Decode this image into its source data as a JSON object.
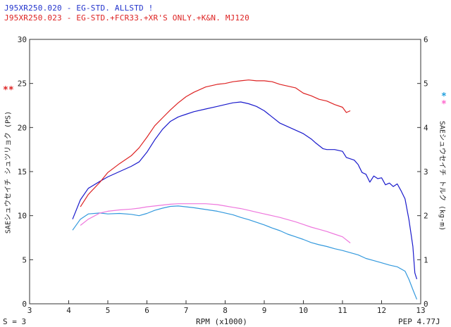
{
  "chart_data": {
    "type": "line",
    "legend": [
      {
        "text": "J95XR250.020 - EG-STD. ALLSTD !",
        "color": "#2233cc"
      },
      {
        "text": "J95XR250.023 - EG-STD.+FCR33.+XR'S ONLY.+K&N. MJ120",
        "color": "#dd2222"
      }
    ],
    "xlabel": "RPM (x1000)",
    "ylabel_left": "SAEシュウセイチ シュツリョク (PS)",
    "ylabel_right": "SAEシュウセイチ トルク (kg-m)",
    "xlim": [
      3,
      13
    ],
    "ylim_left": [
      0,
      30
    ],
    "ylim_right": [
      0,
      6
    ],
    "x_ticks": [
      "3",
      "4",
      "5",
      "6",
      "7",
      "8",
      "9",
      "10",
      "11",
      "12",
      "13"
    ],
    "y_ticks_left": [
      "0",
      "5",
      "10",
      "15",
      "20",
      "25",
      "30"
    ],
    "y_ticks_right": [
      "0",
      "1",
      "2",
      "3",
      "4",
      "5",
      "6"
    ],
    "grid": false,
    "markers": {
      "left": "**",
      "right_1": "*",
      "right_2": "*"
    },
    "series": [
      {
        "key": "power_std",
        "axis": "left",
        "color": "#1a1acc",
        "points": [
          [
            4.1,
            9.6
          ],
          [
            4.3,
            11.8
          ],
          [
            4.5,
            13.1
          ],
          [
            4.8,
            13.9
          ],
          [
            5.0,
            14.4
          ],
          [
            5.3,
            15.0
          ],
          [
            5.6,
            15.6
          ],
          [
            5.8,
            16.1
          ],
          [
            6.0,
            17.2
          ],
          [
            6.2,
            18.6
          ],
          [
            6.4,
            19.8
          ],
          [
            6.6,
            20.7
          ],
          [
            6.8,
            21.2
          ],
          [
            7.0,
            21.5
          ],
          [
            7.2,
            21.8
          ],
          [
            7.5,
            22.1
          ],
          [
            7.8,
            22.4
          ],
          [
            8.0,
            22.6
          ],
          [
            8.2,
            22.8
          ],
          [
            8.4,
            22.9
          ],
          [
            8.6,
            22.7
          ],
          [
            8.8,
            22.4
          ],
          [
            9.0,
            21.9
          ],
          [
            9.2,
            21.2
          ],
          [
            9.4,
            20.5
          ],
          [
            9.6,
            20.1
          ],
          [
            9.8,
            19.7
          ],
          [
            10.0,
            19.3
          ],
          [
            10.2,
            18.7
          ],
          [
            10.3,
            18.3
          ],
          [
            10.5,
            17.6
          ],
          [
            10.6,
            17.5
          ],
          [
            10.8,
            17.5
          ],
          [
            11.0,
            17.3
          ],
          [
            11.1,
            16.6
          ],
          [
            11.3,
            16.3
          ],
          [
            11.4,
            15.8
          ],
          [
            11.5,
            14.9
          ],
          [
            11.6,
            14.7
          ],
          [
            11.7,
            13.8
          ],
          [
            11.8,
            14.5
          ],
          [
            11.9,
            14.2
          ],
          [
            12.0,
            14.3
          ],
          [
            12.1,
            13.5
          ],
          [
            12.2,
            13.7
          ],
          [
            12.3,
            13.3
          ],
          [
            12.4,
            13.6
          ],
          [
            12.5,
            12.8
          ],
          [
            12.6,
            11.9
          ],
          [
            12.7,
            9.5
          ],
          [
            12.8,
            6.5
          ],
          [
            12.85,
            3.5
          ],
          [
            12.9,
            2.8
          ]
        ]
      },
      {
        "key": "power_mod",
        "axis": "left",
        "color": "#dd2222",
        "points": [
          [
            4.3,
            11.0
          ],
          [
            4.5,
            12.4
          ],
          [
            4.8,
            13.8
          ],
          [
            5.0,
            14.9
          ],
          [
            5.3,
            15.9
          ],
          [
            5.6,
            16.8
          ],
          [
            5.8,
            17.7
          ],
          [
            6.0,
            18.9
          ],
          [
            6.2,
            20.2
          ],
          [
            6.4,
            21.1
          ],
          [
            6.6,
            22.0
          ],
          [
            6.8,
            22.8
          ],
          [
            7.0,
            23.5
          ],
          [
            7.2,
            24.0
          ],
          [
            7.5,
            24.6
          ],
          [
            7.8,
            24.9
          ],
          [
            8.0,
            25.0
          ],
          [
            8.2,
            25.2
          ],
          [
            8.4,
            25.3
          ],
          [
            8.6,
            25.4
          ],
          [
            8.8,
            25.3
          ],
          [
            9.0,
            25.3
          ],
          [
            9.2,
            25.2
          ],
          [
            9.4,
            24.9
          ],
          [
            9.6,
            24.7
          ],
          [
            9.8,
            24.5
          ],
          [
            10.0,
            23.9
          ],
          [
            10.2,
            23.6
          ],
          [
            10.4,
            23.2
          ],
          [
            10.6,
            23.0
          ],
          [
            10.8,
            22.6
          ],
          [
            11.0,
            22.3
          ],
          [
            11.1,
            21.7
          ],
          [
            11.2,
            21.9
          ]
        ]
      },
      {
        "key": "torque_std",
        "axis": "right",
        "color": "#3399dd",
        "points": [
          [
            4.1,
            1.67
          ],
          [
            4.3,
            1.92
          ],
          [
            4.5,
            2.04
          ],
          [
            4.8,
            2.06
          ],
          [
            5.0,
            2.04
          ],
          [
            5.3,
            2.05
          ],
          [
            5.6,
            2.03
          ],
          [
            5.8,
            2.0
          ],
          [
            6.0,
            2.05
          ],
          [
            6.2,
            2.12
          ],
          [
            6.4,
            2.17
          ],
          [
            6.6,
            2.21
          ],
          [
            6.8,
            2.22
          ],
          [
            7.0,
            2.2
          ],
          [
            7.2,
            2.18
          ],
          [
            7.5,
            2.14
          ],
          [
            7.8,
            2.1
          ],
          [
            8.0,
            2.06
          ],
          [
            8.2,
            2.02
          ],
          [
            8.4,
            1.96
          ],
          [
            8.6,
            1.91
          ],
          [
            8.8,
            1.85
          ],
          [
            9.0,
            1.79
          ],
          [
            9.2,
            1.72
          ],
          [
            9.4,
            1.66
          ],
          [
            9.6,
            1.58
          ],
          [
            9.8,
            1.52
          ],
          [
            10.0,
            1.46
          ],
          [
            10.2,
            1.39
          ],
          [
            10.4,
            1.34
          ],
          [
            10.6,
            1.3
          ],
          [
            10.8,
            1.25
          ],
          [
            11.0,
            1.21
          ],
          [
            11.2,
            1.16
          ],
          [
            11.4,
            1.11
          ],
          [
            11.6,
            1.03
          ],
          [
            11.8,
            0.98
          ],
          [
            12.0,
            0.93
          ],
          [
            12.2,
            0.88
          ],
          [
            12.4,
            0.84
          ],
          [
            12.6,
            0.74
          ],
          [
            12.7,
            0.55
          ],
          [
            12.8,
            0.32
          ],
          [
            12.9,
            0.1
          ]
        ]
      },
      {
        "key": "torque_mod",
        "axis": "right",
        "color": "#ee77dd",
        "points": [
          [
            4.3,
            1.78
          ],
          [
            4.5,
            1.92
          ],
          [
            4.8,
            2.06
          ],
          [
            5.0,
            2.1
          ],
          [
            5.3,
            2.13
          ],
          [
            5.6,
            2.15
          ],
          [
            5.8,
            2.17
          ],
          [
            6.0,
            2.2
          ],
          [
            6.2,
            2.22
          ],
          [
            6.4,
            2.24
          ],
          [
            6.6,
            2.26
          ],
          [
            6.8,
            2.27
          ],
          [
            7.0,
            2.27
          ],
          [
            7.2,
            2.27
          ],
          [
            7.5,
            2.27
          ],
          [
            7.8,
            2.25
          ],
          [
            8.0,
            2.22
          ],
          [
            8.2,
            2.19
          ],
          [
            8.4,
            2.16
          ],
          [
            8.6,
            2.12
          ],
          [
            8.8,
            2.08
          ],
          [
            9.0,
            2.04
          ],
          [
            9.2,
            2.0
          ],
          [
            9.4,
            1.96
          ],
          [
            9.6,
            1.91
          ],
          [
            9.8,
            1.86
          ],
          [
            10.0,
            1.8
          ],
          [
            10.2,
            1.74
          ],
          [
            10.4,
            1.69
          ],
          [
            10.6,
            1.64
          ],
          [
            10.8,
            1.58
          ],
          [
            11.0,
            1.52
          ],
          [
            11.2,
            1.38
          ]
        ]
      }
    ]
  },
  "footer": {
    "left": "S = 3",
    "center": "RPM (x1000)",
    "right": "PEP 4.77J"
  }
}
